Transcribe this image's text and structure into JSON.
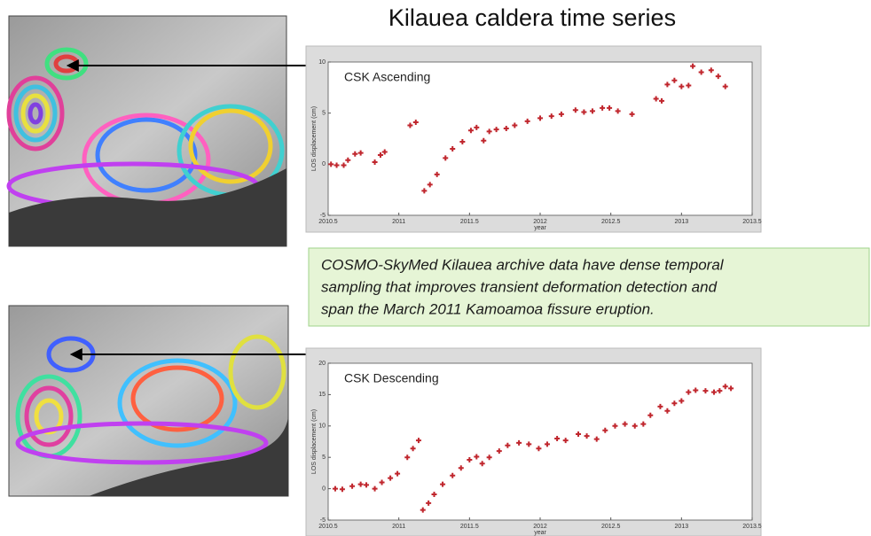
{
  "title": "Kilauea caldera time series",
  "note": {
    "lines": [
      "COSMO-SkyMed Kilauea archive data have dense temporal",
      "sampling that improves transient deformation detection and",
      "span the March 2011 Kamoamoa fissure eruption."
    ]
  },
  "chart_data": [
    {
      "type": "scatter",
      "label": "CSK Ascending",
      "xlabel": "year",
      "ylabel": "LOS displacement (cm)",
      "color": "#c0262d",
      "xlim": [
        2010.5,
        2013.5
      ],
      "xticks": [
        2010.5,
        2011,
        2011.5,
        2012,
        2012.5,
        2013,
        2013.5
      ],
      "ylim": [
        -5,
        10
      ],
      "yticks": [
        -5,
        0,
        5,
        10
      ],
      "x": [
        2010.52,
        2010.56,
        2010.61,
        2010.64,
        2010.69,
        2010.73,
        2010.83,
        2010.87,
        2010.9,
        2011.08,
        2011.12,
        2011.18,
        2011.22,
        2011.27,
        2011.33,
        2011.38,
        2011.45,
        2011.51,
        2011.55,
        2011.6,
        2011.64,
        2011.69,
        2011.76,
        2011.82,
        2011.91,
        2012.0,
        2012.08,
        2012.15,
        2012.25,
        2012.31,
        2012.37,
        2012.44,
        2012.49,
        2012.55,
        2012.65,
        2012.82,
        2012.86,
        2012.9,
        2012.95,
        2013.0,
        2013.05,
        2013.08,
        2013.14,
        2013.21,
        2013.26,
        2013.31
      ],
      "values": [
        0,
        -0.1,
        -0.1,
        0.4,
        1.0,
        1.1,
        0.2,
        0.9,
        1.2,
        3.8,
        4.1,
        -2.6,
        -2.0,
        -1.0,
        0.6,
        1.5,
        2.2,
        3.3,
        3.6,
        2.3,
        3.2,
        3.4,
        3.5,
        3.8,
        4.2,
        4.5,
        4.7,
        4.9,
        5.3,
        5.1,
        5.2,
        5.5,
        5.5,
        5.2,
        4.9,
        6.4,
        6.2,
        7.8,
        8.2,
        7.6,
        7.7,
        9.6,
        9.0,
        9.2,
        8.6,
        7.6
      ]
    },
    {
      "type": "scatter",
      "label": "CSK Descending",
      "xlabel": "year",
      "ylabel": "LOS displacement (cm)",
      "color": "#c0262d",
      "xlim": [
        2010.5,
        2013.5
      ],
      "xticks": [
        2010.5,
        2011,
        2011.5,
        2012,
        2012.5,
        2013,
        2013.5
      ],
      "ylim": [
        -5,
        20
      ],
      "yticks": [
        -5,
        0,
        5,
        10,
        15,
        20
      ],
      "x": [
        2010.55,
        2010.6,
        2010.67,
        2010.73,
        2010.77,
        2010.83,
        2010.88,
        2010.94,
        2010.99,
        2011.06,
        2011.1,
        2011.14,
        2011.17,
        2011.21,
        2011.25,
        2011.31,
        2011.38,
        2011.44,
        2011.5,
        2011.55,
        2011.59,
        2011.64,
        2011.71,
        2011.77,
        2011.85,
        2011.92,
        2011.99,
        2012.05,
        2012.12,
        2012.18,
        2012.27,
        2012.33,
        2012.4,
        2012.46,
        2012.53,
        2012.6,
        2012.67,
        2012.73,
        2012.78,
        2012.85,
        2012.9,
        2012.95,
        2013.0,
        2013.05,
        2013.1,
        2013.17,
        2013.23,
        2013.27,
        2013.31,
        2013.35
      ],
      "values": [
        0.0,
        -0.1,
        0.4,
        0.7,
        0.6,
        0.0,
        1.0,
        1.7,
        2.4,
        5.0,
        6.4,
        7.7,
        -3.4,
        -2.3,
        -0.9,
        0.7,
        2.1,
        3.3,
        4.6,
        5.1,
        4.0,
        5.0,
        6.0,
        6.9,
        7.3,
        7.1,
        6.4,
        7.1,
        8.0,
        7.7,
        8.7,
        8.4,
        7.9,
        9.3,
        10.0,
        10.3,
        10.0,
        10.3,
        11.7,
        13.1,
        12.4,
        13.6,
        14.0,
        15.4,
        15.7,
        15.6,
        15.4,
        15.6,
        16.3,
        16.0
      ]
    }
  ]
}
